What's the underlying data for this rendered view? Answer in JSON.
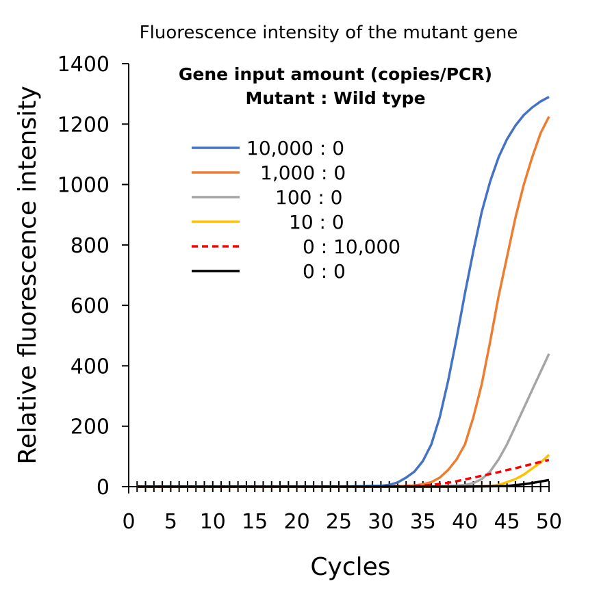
{
  "chart_data": {
    "type": "line",
    "title": "Fluorescence intensity of the mutant gene",
    "xlabel": "Cycles",
    "ylabel": "Relative fluorescence intensity",
    "xlim": [
      0,
      50
    ],
    "ylim": [
      0,
      1400
    ],
    "xticks": [
      "0",
      "5",
      "10",
      "15",
      "20",
      "25",
      "30",
      "35",
      "40",
      "45",
      "50"
    ],
    "yticks": [
      "0",
      "200",
      "400",
      "600",
      "800",
      "1000",
      "1200",
      "1400"
    ],
    "grid": false,
    "legend": {
      "position": "top-left",
      "title_line1": "Gene input amount (copies/PCR)",
      "title_line2": "Mutant : Wild type"
    },
    "series": [
      {
        "name": "10,000 : 0",
        "color": "#4472C4",
        "dashed": false,
        "x": [
          1,
          5,
          10,
          15,
          20,
          25,
          30,
          31,
          32,
          33,
          34,
          35,
          36,
          37,
          38,
          39,
          40,
          41,
          42,
          43,
          44,
          45,
          46,
          47,
          48,
          49,
          50
        ],
        "y": [
          0,
          0,
          0,
          0,
          0,
          0,
          3,
          6,
          14,
          30,
          50,
          85,
          140,
          230,
          350,
          490,
          640,
          780,
          910,
          1010,
          1090,
          1150,
          1195,
          1230,
          1255,
          1275,
          1290
        ]
      },
      {
        "name": "1,000 : 0",
        "color": "#ED7D31",
        "dashed": false,
        "x": [
          1,
          5,
          10,
          15,
          20,
          25,
          30,
          33,
          34,
          35,
          36,
          37,
          38,
          39,
          40,
          41,
          42,
          43,
          44,
          45,
          46,
          47,
          48,
          49,
          50
        ],
        "y": [
          0,
          0,
          0,
          0,
          0,
          0,
          0,
          2,
          4,
          8,
          15,
          30,
          55,
          90,
          140,
          230,
          340,
          480,
          630,
          760,
          890,
          1000,
          1090,
          1170,
          1225
        ]
      },
      {
        "name": "100 : 0",
        "color": "#A5A5A5",
        "dashed": false,
        "x": [
          1,
          5,
          10,
          15,
          20,
          25,
          30,
          35,
          38,
          40,
          41,
          42,
          43,
          44,
          45,
          46,
          47,
          48,
          49,
          50
        ],
        "y": [
          0,
          0,
          0,
          0,
          0,
          0,
          0,
          0,
          2,
          5,
          12,
          25,
          50,
          90,
          140,
          200,
          260,
          320,
          380,
          440
        ]
      },
      {
        "name": "10 : 0",
        "color": "#FFC000",
        "dashed": false,
        "x": [
          1,
          5,
          10,
          15,
          20,
          25,
          30,
          35,
          40,
          43,
          44,
          45,
          46,
          47,
          48,
          49,
          50
        ],
        "y": [
          0,
          0,
          0,
          0,
          0,
          0,
          0,
          0,
          0,
          2,
          6,
          15,
          25,
          40,
          60,
          80,
          105
        ]
      },
      {
        "name": "0 : 10,000",
        "color": "#FF0000",
        "dashed": true,
        "x": [
          1,
          5,
          10,
          15,
          20,
          25,
          30,
          34,
          35,
          36,
          37,
          38,
          39,
          40,
          41,
          42,
          43,
          44,
          45,
          46,
          47,
          48,
          49,
          50
        ],
        "y": [
          0,
          0,
          0,
          0,
          0,
          0,
          0,
          2,
          4,
          6,
          9,
          13,
          18,
          24,
          30,
          36,
          42,
          48,
          55,
          61,
          68,
          75,
          82,
          88
        ]
      },
      {
        "name": "0 : 0",
        "color": "#000000",
        "dashed": false,
        "x": [
          1,
          5,
          10,
          15,
          20,
          25,
          30,
          35,
          40,
          45,
          46,
          47,
          48,
          49,
          50
        ],
        "y": [
          0,
          0,
          0,
          0,
          0,
          0,
          0,
          0,
          0,
          2,
          5,
          8,
          12,
          17,
          22
        ]
      }
    ]
  }
}
